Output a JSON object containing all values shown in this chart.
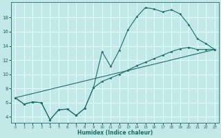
{
  "xlabel": "Humidex (Indice chaleur)",
  "bg_color": "#c2e8e8",
  "grid_color": "#dfffff",
  "line_color": "#1a6b6b",
  "xlim": [
    -0.5,
    23.5
  ],
  "ylim": [
    3.2,
    20.2
  ],
  "xticks": [
    0,
    1,
    2,
    3,
    4,
    5,
    6,
    7,
    8,
    9,
    10,
    11,
    12,
    13,
    14,
    15,
    16,
    17,
    18,
    19,
    20,
    21,
    22,
    23
  ],
  "yticks": [
    4,
    6,
    8,
    10,
    12,
    14,
    16,
    18
  ],
  "line1_x": [
    0,
    1,
    2,
    3,
    4,
    5,
    6,
    7,
    8,
    9,
    10,
    11,
    12,
    13,
    14,
    15,
    16,
    17,
    18,
    19,
    20,
    21,
    22,
    23
  ],
  "line1_y": [
    6.7,
    5.8,
    6.1,
    6.0,
    3.6,
    5.0,
    5.1,
    4.2,
    5.2,
    8.1,
    13.2,
    11.1,
    13.4,
    16.3,
    18.1,
    19.4,
    19.2,
    18.8,
    19.1,
    18.5,
    17.0,
    15.0,
    14.3,
    13.5
  ],
  "line2_x": [
    0,
    1,
    2,
    3,
    4,
    5,
    6,
    7,
    8,
    9,
    10,
    11,
    12,
    13,
    14,
    15,
    16,
    17,
    18,
    19,
    20,
    21,
    22,
    23
  ],
  "line2_y": [
    6.7,
    5.8,
    6.1,
    6.0,
    3.6,
    5.0,
    5.1,
    4.2,
    5.2,
    8.1,
    9.0,
    9.5,
    10.0,
    10.6,
    11.2,
    11.7,
    12.2,
    12.7,
    13.2,
    13.6,
    13.8,
    13.5,
    13.5,
    13.5
  ],
  "line3_x": [
    0,
    23
  ],
  "line3_y": [
    6.7,
    13.5
  ]
}
